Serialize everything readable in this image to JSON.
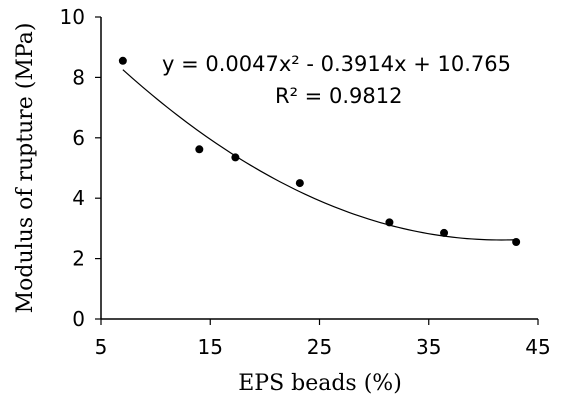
{
  "chart_data": {
    "type": "scatter",
    "title": "",
    "xlabel": "EPS beads (%)",
    "ylabel": "Modulus of rupture (MPa)",
    "xlim": [
      5,
      45
    ],
    "ylim": [
      0,
      10
    ],
    "xticks": [
      5,
      15,
      25,
      35,
      45
    ],
    "yticks": [
      0,
      2,
      4,
      6,
      8,
      10
    ],
    "grid": false,
    "legend": "none",
    "points": [
      {
        "x": 7.0,
        "y": 8.55
      },
      {
        "x": 14.0,
        "y": 5.62
      },
      {
        "x": 17.3,
        "y": 5.35
      },
      {
        "x": 23.2,
        "y": 4.5
      },
      {
        "x": 31.4,
        "y": 3.2
      },
      {
        "x": 36.4,
        "y": 2.85
      },
      {
        "x": 43.0,
        "y": 2.55
      }
    ],
    "trendline": {
      "type": "polynomial",
      "coefficients": [
        0.0047,
        -0.3914,
        10.765
      ],
      "x_range": [
        7,
        43
      ],
      "equation_label": "y = 0.0047x² - 0.3914x + 10.765",
      "r2_label": "R² = 0.9812"
    },
    "colors": {
      "marker": "#000000",
      "line": "#000000",
      "axis": "#000000"
    }
  }
}
